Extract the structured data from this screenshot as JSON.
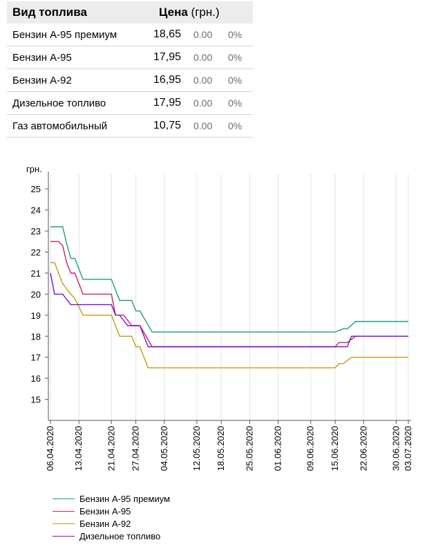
{
  "table": {
    "header": {
      "name": "Вид топлива",
      "price": "Цена",
      "unit": "(грн.)"
    },
    "rows": [
      {
        "name": "Бензин А-95 премиум",
        "price": "18,65",
        "change": "0.00",
        "pct": "0%"
      },
      {
        "name": "Бензин А-95",
        "price": "17,95",
        "change": "0.00",
        "pct": "0%"
      },
      {
        "name": "Бензин А-92",
        "price": "16,95",
        "change": "0.00",
        "pct": "0%"
      },
      {
        "name": "Дизельное топливо",
        "price": "17,95",
        "change": "0.00",
        "pct": "0%"
      },
      {
        "name": "Газ автомобильный",
        "price": "10,75",
        "change": "0.00",
        "pct": "0%"
      }
    ]
  },
  "chart_data": {
    "type": "line",
    "ylabel": "грн.",
    "ylim": [
      14,
      25.5
    ],
    "yticks": [
      15,
      16,
      17,
      18,
      19,
      20,
      21,
      22,
      23,
      24,
      25
    ],
    "xlim": [
      "2020-04-06",
      "2020-07-03"
    ],
    "xticks": [
      "06.04.2020",
      "13.04.2020",
      "21.04.2020",
      "27.04.2020",
      "04.05.2020",
      "12.05.2020",
      "18.05.2020",
      "25.05.2020",
      "01.06.2020",
      "09.06.2020",
      "15.06.2020",
      "22.06.2020",
      "30.06.2020",
      "03.07.2020"
    ],
    "grid": "vertical",
    "legend_position": "bottom",
    "series": [
      {
        "name": "Бензин А-95 премиум",
        "color": "#1a9e7f",
        "points": [
          [
            "2020-04-06",
            23.2
          ],
          [
            "2020-04-09",
            23.2
          ],
          [
            "2020-04-10",
            22.4
          ],
          [
            "2020-04-11",
            21.7
          ],
          [
            "2020-04-12",
            21.7
          ],
          [
            "2020-04-13",
            21.2
          ],
          [
            "2020-04-14",
            20.7
          ],
          [
            "2020-04-21",
            20.7
          ],
          [
            "2020-04-23",
            19.7
          ],
          [
            "2020-04-26",
            19.7
          ],
          [
            "2020-04-27",
            19.2
          ],
          [
            "2020-04-28",
            19.2
          ],
          [
            "2020-05-01",
            18.2
          ],
          [
            "2020-06-15",
            18.2
          ],
          [
            "2020-06-17",
            18.35
          ],
          [
            "2020-06-18",
            18.35
          ],
          [
            "2020-06-20",
            18.7
          ],
          [
            "2020-07-03",
            18.7
          ]
        ]
      },
      {
        "name": "Бензин А-95",
        "color": "#cc1f6b",
        "points": [
          [
            "2020-04-06",
            22.5
          ],
          [
            "2020-04-08",
            22.5
          ],
          [
            "2020-04-09",
            22.3
          ],
          [
            "2020-04-10",
            21.5
          ],
          [
            "2020-04-11",
            21.0
          ],
          [
            "2020-04-12",
            21.0
          ],
          [
            "2020-04-14",
            20.0
          ],
          [
            "2020-04-21",
            20.0
          ],
          [
            "2020-04-22",
            19.0
          ],
          [
            "2020-04-24",
            19.0
          ],
          [
            "2020-04-26",
            18.5
          ],
          [
            "2020-04-28",
            18.5
          ],
          [
            "2020-05-01",
            17.5
          ],
          [
            "2020-06-15",
            17.5
          ],
          [
            "2020-06-16",
            17.7
          ],
          [
            "2020-06-18",
            17.7
          ],
          [
            "2020-06-20",
            18.0
          ],
          [
            "2020-07-03",
            18.0
          ]
        ]
      },
      {
        "name": "Бензин А-92",
        "color": "#c9980d",
        "points": [
          [
            "2020-04-06",
            21.5
          ],
          [
            "2020-04-07",
            21.5
          ],
          [
            "2020-04-09",
            20.5
          ],
          [
            "2020-04-11",
            20.0
          ],
          [
            "2020-04-12",
            19.8
          ],
          [
            "2020-04-14",
            19.0
          ],
          [
            "2020-04-21",
            19.0
          ],
          [
            "2020-04-23",
            18.0
          ],
          [
            "2020-04-26",
            18.0
          ],
          [
            "2020-04-27",
            17.5
          ],
          [
            "2020-04-28",
            17.5
          ],
          [
            "2020-04-30",
            16.5
          ],
          [
            "2020-06-15",
            16.5
          ],
          [
            "2020-06-16",
            16.7
          ],
          [
            "2020-06-17",
            16.7
          ],
          [
            "2020-06-19",
            17.0
          ],
          [
            "2020-07-03",
            17.0
          ]
        ]
      },
      {
        "name": "Дизельное топливо",
        "color": "#7513c7",
        "points": [
          [
            "2020-04-06",
            21.0
          ],
          [
            "2020-04-07",
            20.0
          ],
          [
            "2020-04-09",
            20.0
          ],
          [
            "2020-04-11",
            19.5
          ],
          [
            "2020-04-21",
            19.5
          ],
          [
            "2020-04-22",
            19.0
          ],
          [
            "2020-04-23",
            19.0
          ],
          [
            "2020-04-25",
            18.5
          ],
          [
            "2020-04-28",
            18.5
          ],
          [
            "2020-04-29",
            18.0
          ],
          [
            "2020-04-30",
            17.5
          ],
          [
            "2020-06-18",
            17.5
          ],
          [
            "2020-06-19",
            18.0
          ],
          [
            "2020-07-03",
            18.0
          ]
        ]
      }
    ]
  }
}
